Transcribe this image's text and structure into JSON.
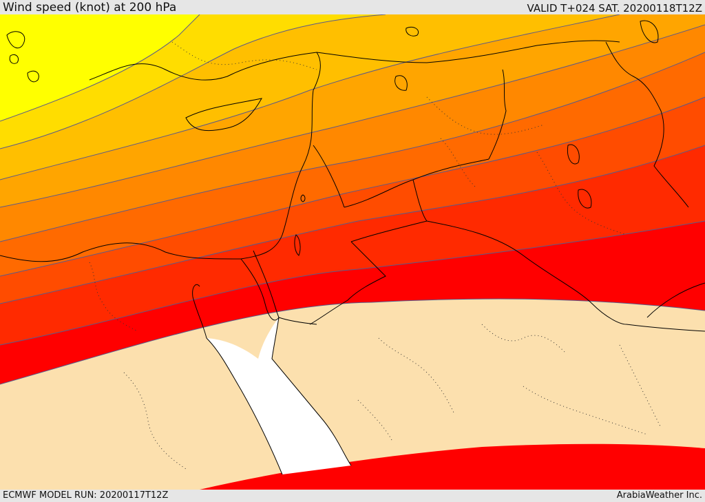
{
  "header": {
    "title": "Wind speed (knot) at 200 hPa",
    "valid": "VALID T+024 SAT. 20200118T12Z"
  },
  "footer": {
    "model_run": "ECMWF MODEL RUN: 20200117T12Z",
    "credit": "ArabiaWeather Inc."
  },
  "colors": {
    "calm_land": "#fce0ae",
    "sea_low": "#ffffff",
    "band_1": "#ffff00",
    "band_2": "#ffdd00",
    "band_3": "#ffbf00",
    "band_4": "#ffa500",
    "band_5": "#ff8800",
    "band_6": "#ff6a00",
    "band_7": "#ff4c00",
    "band_8": "#ff2a00",
    "band_9": "#ff0000",
    "contour": "#5a5a8a",
    "border": "#000000"
  }
}
